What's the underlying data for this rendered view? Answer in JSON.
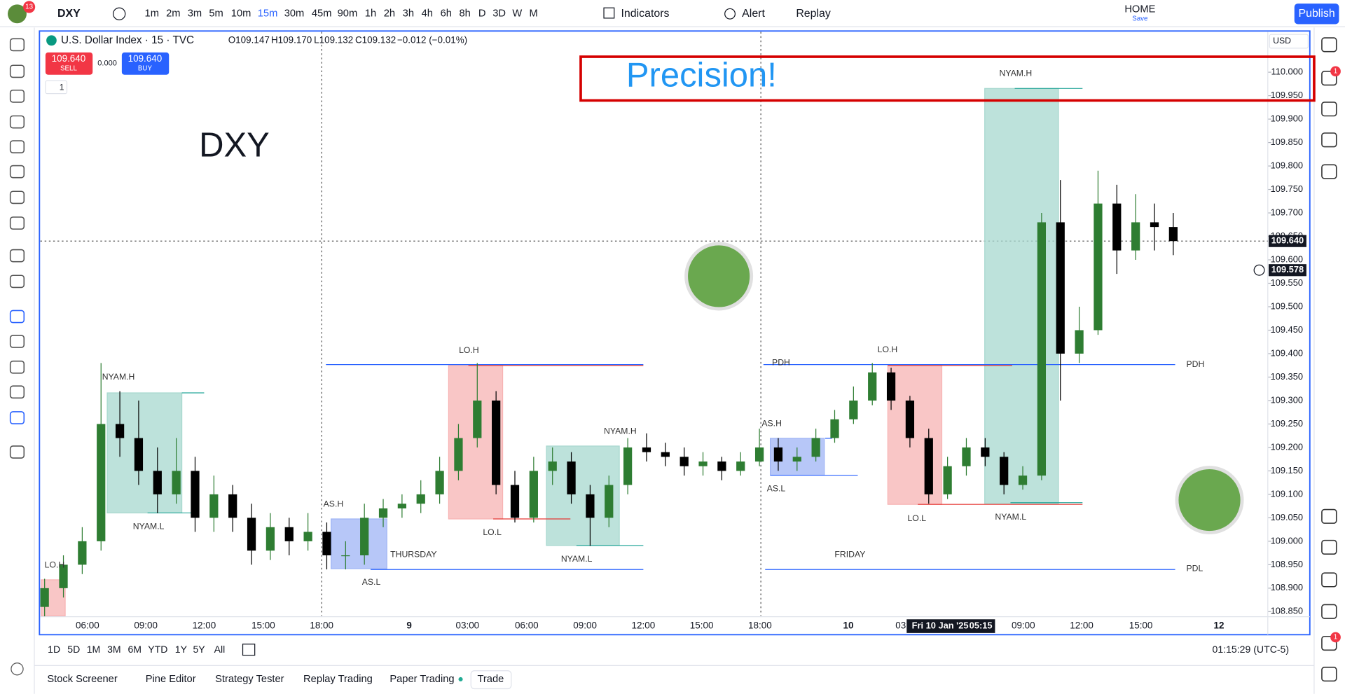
{
  "header": {
    "notifications": "13",
    "symbol": "DXY",
    "timeframes": [
      "1m",
      "2m",
      "3m",
      "5m",
      "10m",
      "15m",
      "30m",
      "45m",
      "90m",
      "1h",
      "2h",
      "3h",
      "4h",
      "6h",
      "8h",
      "D",
      "3D",
      "W",
      "M"
    ],
    "active_timeframe": 5,
    "indicators": "Indicators",
    "alert": "Alert",
    "replay": "Replay",
    "layout_name": "HOME",
    "layout_save": "Save",
    "publish": "Publish"
  },
  "legend": {
    "title": "U.S. Dollar Index · 15 · TVC",
    "ohlc": [
      "O109.147",
      "H109.170",
      "L109.132",
      "C109.132",
      "−0.012 (−0.01%)"
    ],
    "sell_price": "109.640",
    "sell": "SELL",
    "spread": "0.000",
    "buy_price": "109.640",
    "buy": "BUY",
    "indicator_count": "1",
    "currency": "USD"
  },
  "chart_data": {
    "type": "candlestick",
    "up_color": "#2e7d32",
    "down_color": "#000000",
    "ylim": [
      108.841,
      110.086
    ],
    "yticks": [
      {
        "value": 110,
        "label": "110.000"
      },
      {
        "value": 109.95,
        "label": "109.950"
      },
      {
        "value": 109.9,
        "label": "109.900"
      },
      {
        "value": 109.85,
        "label": "109.850"
      },
      {
        "value": 109.8,
        "label": "109.800"
      },
      {
        "value": 109.75,
        "label": "109.750"
      },
      {
        "value": 109.7,
        "label": "109.700"
      },
      {
        "value": 109.65,
        "label": "109.650"
      },
      {
        "value": 109.6,
        "label": "109.600"
      },
      {
        "value": 109.55,
        "label": "109.550"
      },
      {
        "value": 109.5,
        "label": "109.500"
      },
      {
        "value": 109.45,
        "label": "109.450"
      },
      {
        "value": 109.4,
        "label": "109.400"
      },
      {
        "value": 109.35,
        "label": "109.350"
      },
      {
        "value": 109.3,
        "label": "109.300"
      },
      {
        "value": 109.25,
        "label": "109.250"
      },
      {
        "value": 109.2,
        "label": "109.200"
      },
      {
        "value": 109.15,
        "label": "109.150"
      },
      {
        "value": 109.1,
        "label": "109.100"
      },
      {
        "value": 109.05,
        "label": "109.050"
      },
      {
        "value": 109,
        "label": "109.000"
      },
      {
        "value": 108.95,
        "label": "108.950"
      },
      {
        "value": 108.9,
        "label": "108.900"
      },
      {
        "value": 108.85,
        "label": "108.850"
      }
    ],
    "x_labels": [
      "06:00",
      "09:00",
      "12:00",
      "15:00",
      "18:00",
      "9",
      "03:00",
      "06:00",
      "09:00",
      "12:00",
      "15:00",
      "18:00",
      "10",
      "03",
      "09:00",
      "12:00",
      "15:00",
      "12"
    ],
    "crosshair_time": "Fri 10 Jan '25",
    "crosshair_clock": "05:15",
    "last_price": {
      "value": 109.64,
      "label": "109.640"
    },
    "cursor_price": {
      "value": 109.578,
      "label": "109.578"
    },
    "annotations": [
      "Precision!",
      "DXY",
      "LO.H",
      "NYAM.H",
      "NYAM.L",
      "AS.H",
      "AS.L",
      "THURSDAY",
      "LO.H",
      "LO.L",
      "NYAM.H",
      "NYAM.L",
      "PDH",
      "AS.H",
      "AS.L",
      "FRIDAY",
      "LO.H",
      "LO.L",
      "NYAM.H",
      "NYAM.L",
      "PDH",
      "PDL"
    ],
    "candles": [
      [
        108.86,
        108.92,
        108.84,
        108.9
      ],
      [
        108.9,
        108.97,
        108.88,
        108.95
      ],
      [
        108.95,
        109.03,
        108.93,
        109.0
      ],
      [
        109.0,
        109.38,
        108.98,
        109.25
      ],
      [
        109.25,
        109.32,
        109.18,
        109.22
      ],
      [
        109.22,
        109.3,
        109.12,
        109.15
      ],
      [
        109.15,
        109.2,
        109.06,
        109.1
      ],
      [
        109.1,
        109.22,
        109.08,
        109.15
      ],
      [
        109.15,
        109.18,
        109.02,
        109.05
      ],
      [
        109.05,
        109.14,
        109.02,
        109.1
      ],
      [
        109.1,
        109.12,
        109.02,
        109.05
      ],
      [
        109.05,
        109.08,
        108.95,
        108.98
      ],
      [
        108.98,
        109.06,
        108.96,
        109.03
      ],
      [
        109.03,
        109.05,
        108.97,
        109.0
      ],
      [
        109.0,
        109.06,
        108.98,
        109.02
      ],
      [
        109.02,
        109.04,
        108.94,
        108.97
      ],
      [
        108.97,
        109.0,
        108.94,
        108.97
      ],
      [
        108.97,
        109.08,
        108.95,
        109.05
      ],
      [
        109.05,
        109.09,
        109.03,
        109.07
      ],
      [
        109.07,
        109.1,
        109.05,
        109.08
      ],
      [
        109.08,
        109.13,
        109.06,
        109.1
      ],
      [
        109.1,
        109.18,
        109.08,
        109.15
      ],
      [
        109.15,
        109.25,
        109.13,
        109.22
      ],
      [
        109.22,
        109.38,
        109.2,
        109.3
      ],
      [
        109.3,
        109.32,
        109.1,
        109.12
      ],
      [
        109.12,
        109.15,
        109.04,
        109.05
      ],
      [
        109.05,
        109.18,
        109.04,
        109.15
      ],
      [
        109.15,
        109.2,
        109.12,
        109.17
      ],
      [
        109.17,
        109.19,
        109.08,
        109.1
      ],
      [
        109.1,
        109.12,
        108.99,
        109.05
      ],
      [
        109.05,
        109.14,
        109.03,
        109.12
      ],
      [
        109.12,
        109.22,
        109.1,
        109.2
      ],
      [
        109.2,
        109.23,
        109.17,
        109.19
      ],
      [
        109.19,
        109.21,
        109.16,
        109.18
      ],
      [
        109.18,
        109.2,
        109.14,
        109.16
      ],
      [
        109.16,
        109.19,
        109.14,
        109.17
      ],
      [
        109.17,
        109.18,
        109.13,
        109.15
      ],
      [
        109.15,
        109.19,
        109.14,
        109.17
      ],
      [
        109.17,
        109.24,
        109.16,
        109.2
      ],
      [
        109.2,
        109.22,
        109.15,
        109.17
      ],
      [
        109.17,
        109.2,
        109.15,
        109.18
      ],
      [
        109.18,
        109.24,
        109.17,
        109.22
      ],
      [
        109.22,
        109.28,
        109.21,
        109.26
      ],
      [
        109.26,
        109.33,
        109.25,
        109.3
      ],
      [
        109.3,
        109.38,
        109.29,
        109.36
      ],
      [
        109.36,
        109.37,
        109.28,
        109.3
      ],
      [
        109.3,
        109.31,
        109.2,
        109.22
      ],
      [
        109.22,
        109.24,
        109.08,
        109.1
      ],
      [
        109.1,
        109.18,
        109.09,
        109.16
      ],
      [
        109.16,
        109.22,
        109.14,
        109.2
      ],
      [
        109.2,
        109.22,
        109.16,
        109.18
      ],
      [
        109.18,
        109.19,
        109.1,
        109.12
      ],
      [
        109.12,
        109.16,
        109.11,
        109.14
      ],
      [
        109.14,
        109.7,
        109.13,
        109.68
      ],
      [
        109.68,
        109.77,
        109.3,
        109.4
      ],
      [
        109.4,
        109.5,
        109.38,
        109.45
      ],
      [
        109.45,
        109.79,
        109.44,
        109.72
      ],
      [
        109.72,
        109.76,
        109.57,
        109.62
      ],
      [
        109.62,
        109.74,
        109.6,
        109.68
      ],
      [
        109.68,
        109.72,
        109.62,
        109.67
      ],
      [
        109.67,
        109.7,
        109.61,
        109.64
      ]
    ]
  },
  "footer": {
    "ranges": [
      "1D",
      "5D",
      "1M",
      "3M",
      "6M",
      "YTD",
      "1Y",
      "5Y",
      "All"
    ],
    "clock": "01:15:29 (UTC-5)",
    "tabs": [
      "Stock Screener",
      "Pine Editor",
      "Strategy Tester",
      "Replay Trading",
      "Paper Trading",
      "Trade"
    ]
  },
  "badges": {
    "alerts": "1",
    "notifications": "1"
  }
}
